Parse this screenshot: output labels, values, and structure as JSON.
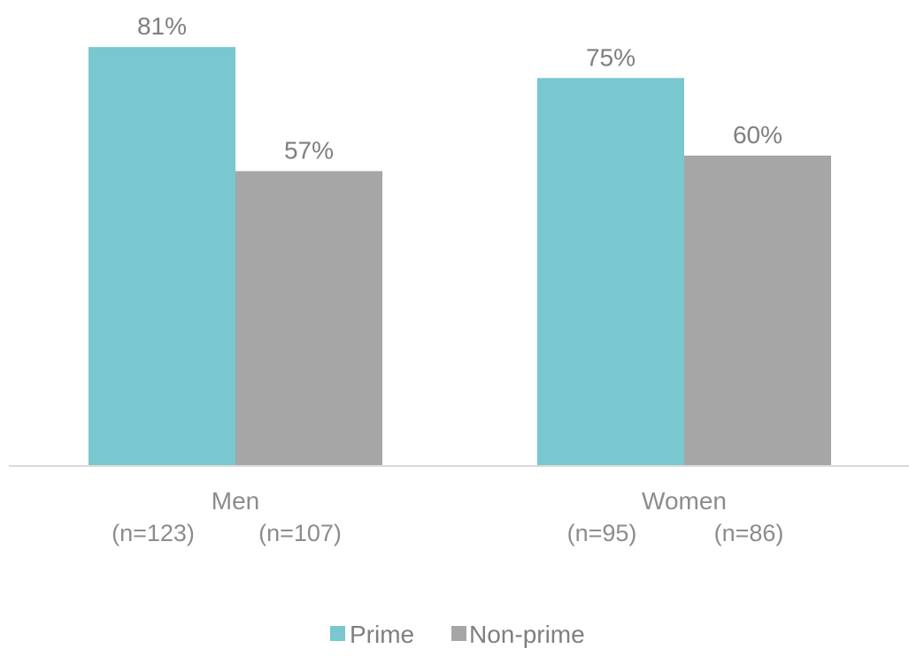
{
  "chart_data": {
    "type": "bar",
    "categories": [
      "Men",
      "Women"
    ],
    "series": [
      {
        "name": "Prime",
        "values": [
          81,
          75
        ],
        "labels": [
          "81%",
          "75%"
        ],
        "sample_sizes": [
          "(n=123)",
          "(n=95)"
        ]
      },
      {
        "name": "Non-prime",
        "values": [
          57,
          60
        ],
        "labels": [
          "57%",
          "60%"
        ],
        "sample_sizes": [
          "(n=107)",
          "(n=86)"
        ]
      }
    ],
    "ylim": [
      0,
      100
    ],
    "grid": false,
    "legend": "bottom-center",
    "colors": {
      "prime": "#79c7cf",
      "nonprime": "#a6a6a6",
      "axis": "#d9d9d9",
      "text": "#7f7f7f"
    }
  }
}
